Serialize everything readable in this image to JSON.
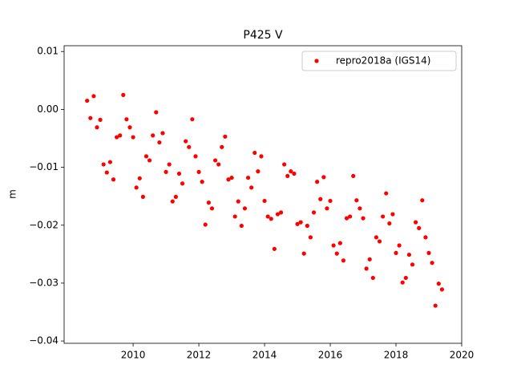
{
  "chart_data": {
    "type": "scatter",
    "title": "P425 V",
    "y_label": "m",
    "xlim": [
      2007.9,
      2020.0
    ],
    "ylim": [
      -0.0404,
      0.011
    ],
    "xticks": [
      2010,
      2012,
      2014,
      2016,
      2018,
      2020
    ],
    "yticks": [
      {
        "value": 0.01,
        "label": "0.01"
      },
      {
        "value": 0.0,
        "label": "0.00"
      },
      {
        "value": -0.01,
        "label": "−0.01"
      },
      {
        "value": -0.02,
        "label": "−0.02"
      },
      {
        "value": -0.03,
        "label": "−0.03"
      },
      {
        "value": -0.04,
        "label": "−0.04"
      }
    ],
    "grid": false,
    "legend": "upper right",
    "series": [
      {
        "name": "repro2018a (IGS14)",
        "color": "#ff0000",
        "x": [
          2008.6,
          2008.7,
          2008.8,
          2008.9,
          2009.0,
          2009.1,
          2009.2,
          2009.3,
          2009.4,
          2009.5,
          2009.6,
          2009.7,
          2009.8,
          2009.9,
          2010.0,
          2010.1,
          2010.2,
          2010.3,
          2010.4,
          2010.5,
          2010.6,
          2010.7,
          2010.8,
          2010.9,
          2011.0,
          2011.1,
          2011.2,
          2011.3,
          2011.4,
          2011.5,
          2011.6,
          2011.7,
          2011.8,
          2011.9,
          2012.0,
          2012.1,
          2012.2,
          2012.3,
          2012.4,
          2012.5,
          2012.6,
          2012.7,
          2012.8,
          2012.9,
          2013.0,
          2013.1,
          2013.2,
          2013.3,
          2013.4,
          2013.5,
          2013.6,
          2013.7,
          2013.8,
          2013.9,
          2014.0,
          2014.1,
          2014.2,
          2014.3,
          2014.4,
          2014.5,
          2014.6,
          2014.7,
          2014.8,
          2014.9,
          2015.0,
          2015.1,
          2015.2,
          2015.3,
          2015.4,
          2015.5,
          2015.6,
          2015.7,
          2015.8,
          2015.9,
          2016.0,
          2016.1,
          2016.2,
          2016.3,
          2016.4,
          2016.5,
          2016.6,
          2016.7,
          2016.8,
          2016.9,
          2017.0,
          2017.1,
          2017.2,
          2017.3,
          2017.4,
          2017.5,
          2017.6,
          2017.7,
          2017.8,
          2017.9,
          2018.0,
          2018.1,
          2018.2,
          2018.3,
          2018.4,
          2018.5,
          2018.6,
          2018.7,
          2018.8,
          2018.9,
          2019.0,
          2019.1,
          2019.2,
          2019.3,
          2019.4
        ],
        "values": [
          0.0015,
          -0.0015,
          0.0023,
          -0.0031,
          -0.0018,
          -0.0095,
          -0.0109,
          -0.0091,
          -0.0121,
          -0.0048,
          -0.0045,
          0.0025,
          -0.0017,
          -0.0031,
          -0.0048,
          -0.0135,
          -0.0119,
          -0.0151,
          -0.0081,
          -0.0088,
          -0.0045,
          -0.0005,
          -0.0057,
          -0.0041,
          -0.0108,
          -0.0095,
          -0.0159,
          -0.0151,
          -0.0111,
          -0.0128,
          -0.0055,
          -0.0065,
          -0.0017,
          -0.0081,
          -0.0108,
          -0.0125,
          -0.0199,
          -0.0161,
          -0.0171,
          -0.0088,
          -0.0095,
          -0.0065,
          -0.0047,
          -0.0121,
          -0.0118,
          -0.0185,
          -0.0159,
          -0.0201,
          -0.0171,
          -0.0118,
          -0.0135,
          -0.0075,
          -0.0107,
          -0.0081,
          -0.0158,
          -0.0185,
          -0.0189,
          -0.0241,
          -0.0181,
          -0.0178,
          -0.0095,
          -0.0115,
          -0.0107,
          -0.0111,
          -0.0198,
          -0.0195,
          -0.0249,
          -0.0201,
          -0.0221,
          -0.0178,
          -0.0125,
          -0.0155,
          -0.0117,
          -0.0171,
          -0.0158,
          -0.0235,
          -0.0249,
          -0.0231,
          -0.0261,
          -0.0188,
          -0.0185,
          -0.0115,
          -0.0157,
          -0.0171,
          -0.0188,
          -0.0275,
          -0.0259,
          -0.0291,
          -0.0221,
          -0.0228,
          -0.0185,
          -0.0145,
          -0.0197,
          -0.0181,
          -0.0248,
          -0.0235,
          -0.0299,
          -0.0291,
          -0.0251,
          -0.0268,
          -0.0195,
          -0.0205,
          -0.0157,
          -0.0221,
          -0.0248,
          -0.0265,
          -0.0339,
          -0.0301,
          -0.0311
        ]
      }
    ]
  }
}
